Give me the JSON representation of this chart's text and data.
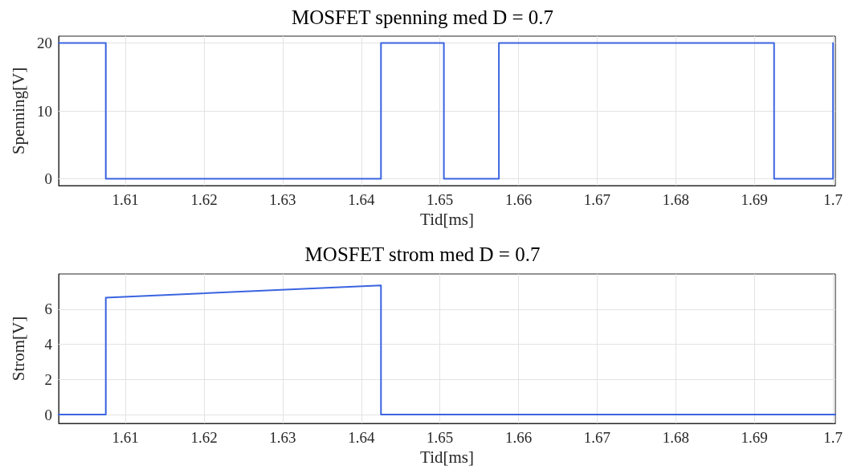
{
  "chart_data": [
    {
      "type": "line",
      "title": "MOSFET spenning med D = 0.7",
      "xlabel": "Tid[ms]",
      "ylabel": "Spenning[V]",
      "x": [
        1.6015,
        1.6075,
        1.6075,
        1.6425,
        1.6425,
        1.6505,
        1.6505,
        1.6575,
        1.6575,
        1.6925,
        1.6925,
        1.7,
        1.7
      ],
      "series": [
        {
          "color": "#3a64e0",
          "values": [
            20,
            20,
            0,
            0,
            20,
            20,
            0,
            0,
            20,
            20,
            0,
            0,
            20
          ]
        }
      ],
      "xlim": [
        1.6015,
        1.7003
      ],
      "xticks": [
        1.61,
        1.62,
        1.63,
        1.64,
        1.65,
        1.66,
        1.67,
        1.68,
        1.69,
        1.7
      ],
      "ylim": [
        -1,
        21
      ],
      "yticks": [
        0,
        10,
        20
      ],
      "grid": true,
      "marker": "none",
      "line_style": "solid"
    },
    {
      "type": "line",
      "title": "MOSFET strom med D = 0.7",
      "xlabel": "Tid[ms]",
      "ylabel": "Strom[V]",
      "x": [
        1.6015,
        1.6075,
        1.6075,
        1.6425,
        1.6425,
        1.7003
      ],
      "series": [
        {
          "color": "#3a64e0",
          "values": [
            0,
            0,
            6.65,
            7.35,
            0,
            0
          ]
        }
      ],
      "xlim": [
        1.6015,
        1.7003
      ],
      "xticks": [
        1.61,
        1.62,
        1.63,
        1.64,
        1.65,
        1.66,
        1.67,
        1.68,
        1.69,
        1.7
      ],
      "ylim": [
        -0.5,
        8
      ],
      "yticks": [
        0,
        2,
        4,
        6
      ],
      "grid": true,
      "marker": "none",
      "line_style": "solid"
    }
  ]
}
